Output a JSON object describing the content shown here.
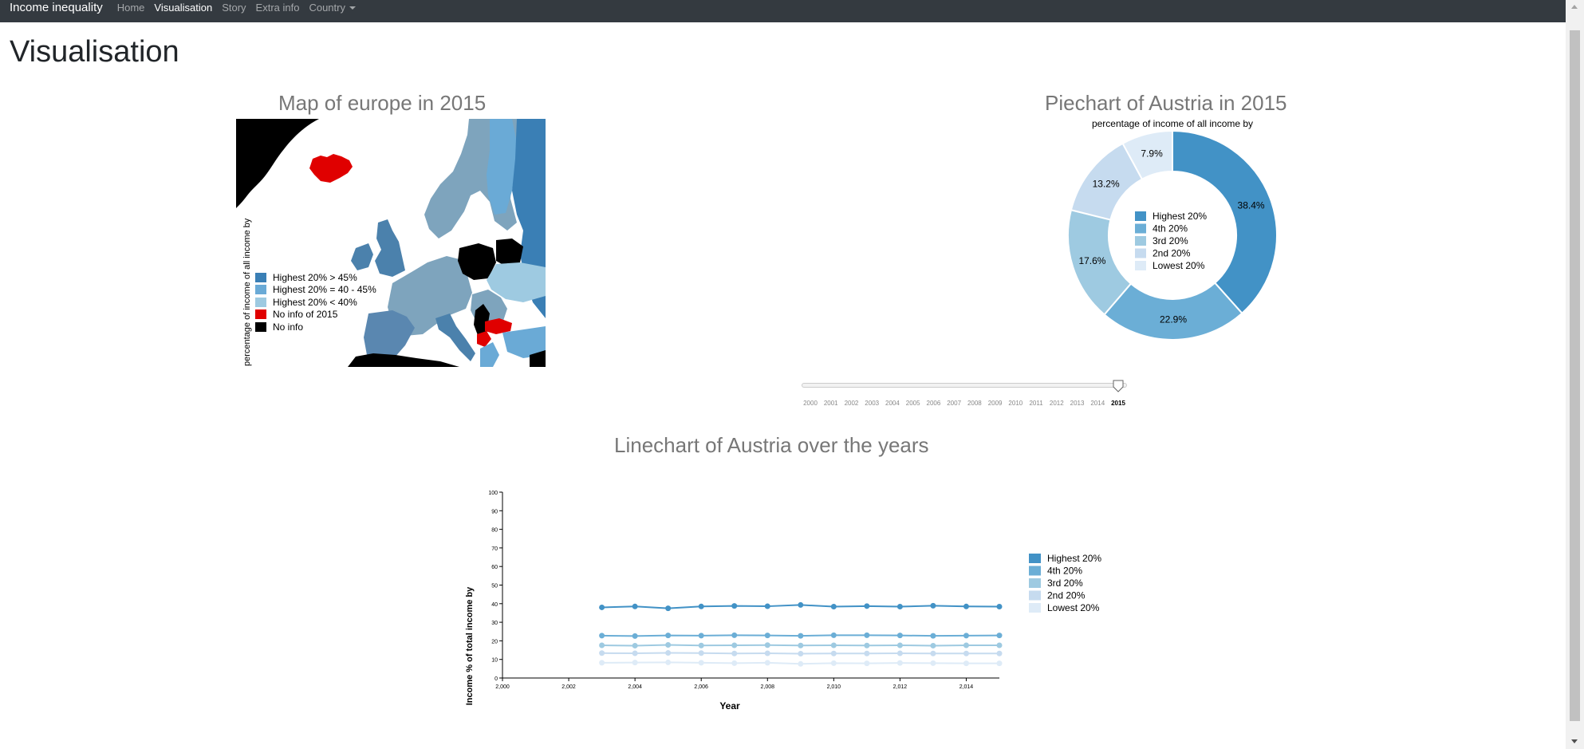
{
  "navbar": {
    "brand": "Income inequality",
    "items": [
      {
        "label": "Home",
        "active": false
      },
      {
        "label": "Visualisation",
        "active": true
      },
      {
        "label": "Story",
        "active": false
      },
      {
        "label": "Extra info",
        "active": false
      },
      {
        "label": "Country",
        "active": false
      }
    ]
  },
  "page_title": "Visualisation",
  "map": {
    "title": "Map of europe in 2015",
    "axis_label": "percentage of income of all income by",
    "legend": [
      {
        "label": "Highest 20% > 45%",
        "color": "#3a7fb5"
      },
      {
        "label": "Highest 20% = 40 - 45%",
        "color": "#6aaad6"
      },
      {
        "label": "Highest 20% < 40%",
        "color": "#9ecae1"
      },
      {
        "label": "No info of 2015",
        "color": "#e00000"
      },
      {
        "label": "No info",
        "color": "#000000"
      }
    ]
  },
  "slider": {
    "years": [
      "2000",
      "2001",
      "2002",
      "2003",
      "2004",
      "2005",
      "2006",
      "2007",
      "2008",
      "2009",
      "2010",
      "2011",
      "2012",
      "2013",
      "2014",
      "2015"
    ],
    "selected": "2015"
  },
  "linechart_title": "Linechart of Austria over the years",
  "chart_data": [
    {
      "type": "pie",
      "title": "Piechart of Austria in 2015",
      "subtitle": "percentage of income of all income by",
      "categories": [
        "Highest 20%",
        "4th 20%",
        "3rd 20%",
        "2nd 20%",
        "Lowest 20%"
      ],
      "values": [
        38.4,
        22.9,
        17.6,
        13.2,
        7.9
      ],
      "labels": [
        "38.4%",
        "22.9%",
        "17.6%",
        "13.2%",
        "7.9%"
      ],
      "colors": [
        "#4292c6",
        "#6baed6",
        "#9ecae1",
        "#c6dbef",
        "#deebf7"
      ],
      "legend": "center"
    },
    {
      "type": "line",
      "title": "Linechart of Austria over the years",
      "xlabel": "Year",
      "ylabel": "Income % of total income by",
      "xlim": [
        2000,
        2015
      ],
      "ylim": [
        0,
        100
      ],
      "xticks": [
        "2,000",
        "2,002",
        "2,004",
        "2,006",
        "2,008",
        "2,010",
        "2,012",
        "2,014"
      ],
      "yticks": [
        "0",
        "10",
        "20",
        "30",
        "40",
        "50",
        "60",
        "70",
        "80",
        "90",
        "100"
      ],
      "x": [
        2003,
        2004,
        2005,
        2006,
        2007,
        2008,
        2009,
        2010,
        2011,
        2012,
        2013,
        2014,
        2015
      ],
      "legend": "right",
      "series": [
        {
          "name": "Highest 20%",
          "color": "#4292c6",
          "values": [
            38.0,
            38.5,
            37.5,
            38.5,
            38.8,
            38.6,
            39.3,
            38.4,
            38.7,
            38.4,
            38.9,
            38.5,
            38.4
          ]
        },
        {
          "name": "4th 20%",
          "color": "#6baed6",
          "values": [
            22.8,
            22.6,
            22.9,
            22.8,
            23.0,
            22.9,
            22.7,
            23.0,
            23.0,
            22.9,
            22.7,
            22.8,
            22.9
          ]
        },
        {
          "name": "3rd 20%",
          "color": "#9ecae1",
          "values": [
            17.6,
            17.4,
            17.8,
            17.5,
            17.6,
            17.7,
            17.5,
            17.6,
            17.5,
            17.6,
            17.4,
            17.6,
            17.6
          ]
        },
        {
          "name": "2nd 20%",
          "color": "#c6dbef",
          "values": [
            13.4,
            13.3,
            13.5,
            13.4,
            13.2,
            13.3,
            13.1,
            13.2,
            13.2,
            13.3,
            13.2,
            13.2,
            13.2
          ]
        },
        {
          "name": "Lowest 20%",
          "color": "#deebf7",
          "values": [
            8.2,
            8.3,
            8.4,
            8.2,
            8.0,
            8.2,
            7.6,
            8.0,
            7.9,
            8.1,
            8.0,
            7.9,
            7.9
          ]
        }
      ]
    }
  ]
}
